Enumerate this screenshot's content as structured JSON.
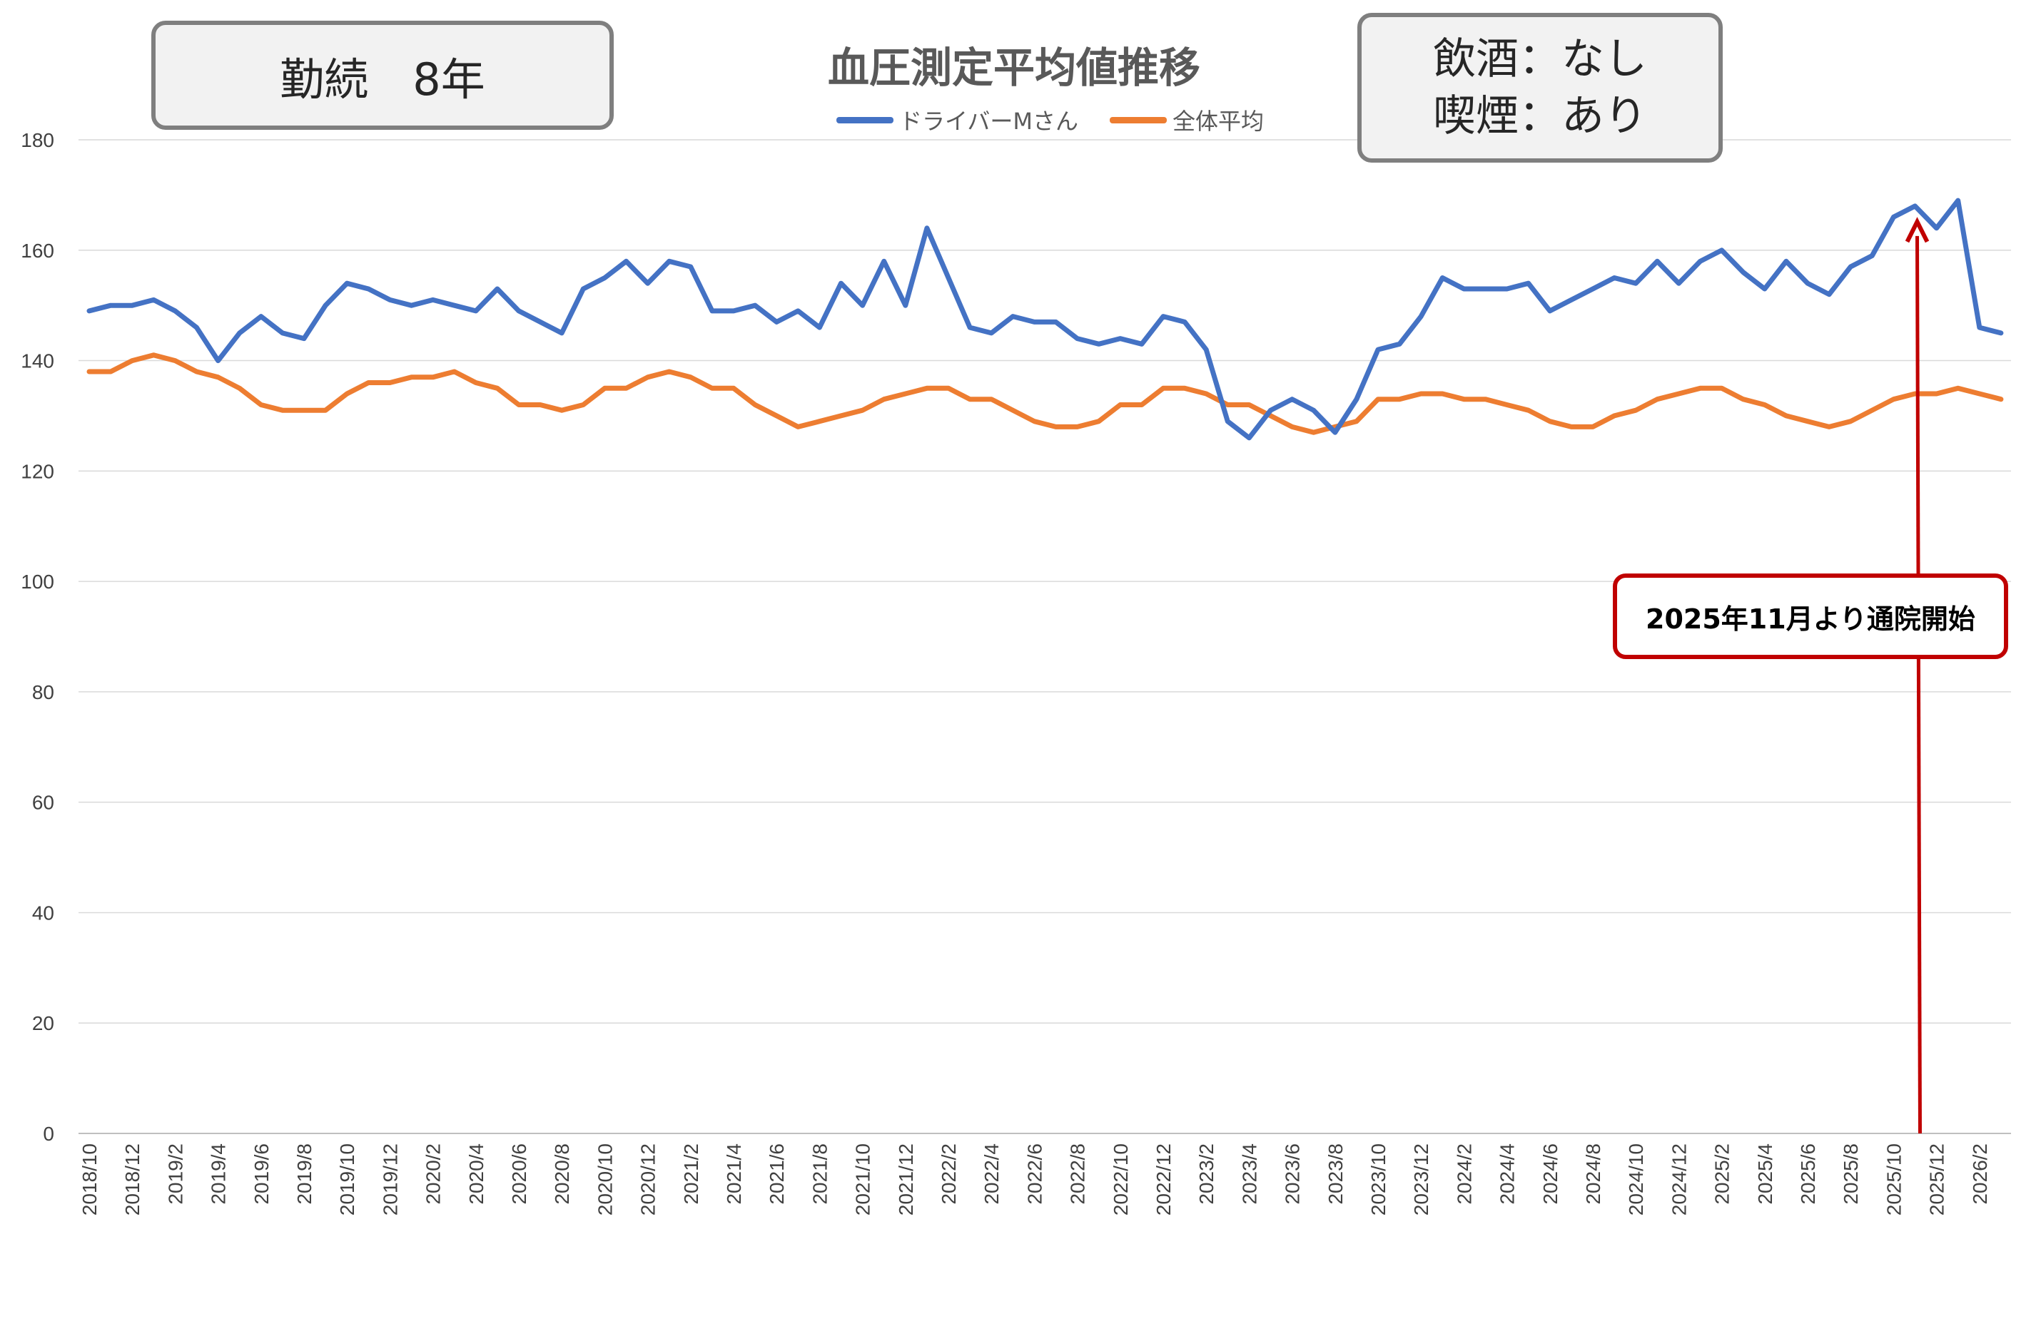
{
  "tenure_label": "勤続　8年",
  "habits": {
    "drinking": "飲酒：なし",
    "smoking": "喫煙：あり"
  },
  "colors": {
    "driver": "#4472c4",
    "average": "#ed7d31",
    "annotation": "#c00000",
    "grid": "#d9d9d9",
    "axis_text": "#404040"
  },
  "annotation": {
    "text": "2025年11月より通院開始",
    "target_period": "2025/11"
  },
  "chart_data": {
    "type": "line",
    "title": "血圧測定平均値推移",
    "ylim": [
      0,
      180
    ],
    "yticks": [
      0,
      20,
      40,
      60,
      80,
      100,
      120,
      140,
      160,
      180
    ],
    "grid": true,
    "legend_position": "top-center",
    "x": [
      "2018/10",
      "2018/11",
      "2018/12",
      "2019/1",
      "2019/2",
      "2019/3",
      "2019/4",
      "2019/5",
      "2019/6",
      "2019/7",
      "2019/8",
      "2019/9",
      "2019/10",
      "2019/11",
      "2019/12",
      "2020/1",
      "2020/2",
      "2020/3",
      "2020/4",
      "2020/5",
      "2020/6",
      "2020/7",
      "2020/8",
      "2020/9",
      "2020/10",
      "2020/11",
      "2020/12",
      "2021/1",
      "2021/2",
      "2021/3",
      "2021/4",
      "2021/5",
      "2021/6",
      "2021/7",
      "2021/8",
      "2021/9",
      "2021/10",
      "2021/11",
      "2021/12",
      "2022/1",
      "2022/2",
      "2022/3",
      "2022/4",
      "2022/5",
      "2022/6",
      "2022/7",
      "2022/8",
      "2022/9",
      "2022/10",
      "2022/11",
      "2022/12",
      "2023/1",
      "2023/2",
      "2023/3",
      "2023/4",
      "2023/5",
      "2023/6",
      "2023/7",
      "2023/8",
      "2023/9",
      "2023/10",
      "2023/11",
      "2023/12",
      "2024/1",
      "2024/2",
      "2024/3",
      "2024/4",
      "2024/5",
      "2024/6",
      "2024/7",
      "2024/8",
      "2024/9",
      "2024/10",
      "2024/11",
      "2024/12",
      "2025/1",
      "2025/2",
      "2025/3",
      "2025/4",
      "2025/5",
      "2025/6",
      "2025/7",
      "2025/8",
      "2025/9",
      "2025/10",
      "2025/11",
      "2025/12",
      "2026/1",
      "2026/2",
      "2026/3"
    ],
    "x_tick_labels": [
      "2018/10",
      "2018/12",
      "2019/2",
      "2019/4",
      "2019/6",
      "2019/8",
      "2019/10",
      "2019/12",
      "2020/2",
      "2020/4",
      "2020/6",
      "2020/8",
      "2020/10",
      "2020/12",
      "2021/2",
      "2021/4",
      "2021/6",
      "2021/8",
      "2021/10",
      "2021/12",
      "2022/2",
      "2022/4",
      "2022/6",
      "2022/8",
      "2022/10",
      "2022/12",
      "2023/2",
      "2023/4",
      "2023/6",
      "2023/8",
      "2023/10",
      "2023/12",
      "2024/2",
      "2024/4",
      "2024/6",
      "2024/8",
      "2024/10",
      "2024/12",
      "2025/2",
      "2025/4",
      "2025/6",
      "2025/8",
      "2025/10",
      "2025/12",
      "2026/2"
    ],
    "series": [
      {
        "name": "ドライバーMさん",
        "values": [
          149,
          150,
          150,
          151,
          149,
          146,
          140,
          145,
          148,
          145,
          144,
          150,
          154,
          153,
          151,
          150,
          151,
          150,
          149,
          153,
          149,
          147,
          145,
          153,
          155,
          158,
          154,
          158,
          157,
          149,
          149,
          150,
          147,
          149,
          146,
          154,
          150,
          158,
          150,
          164,
          155,
          146,
          145,
          148,
          147,
          147,
          144,
          143,
          144,
          143,
          148,
          147,
          142,
          129,
          126,
          131,
          133,
          131,
          127,
          133,
          142,
          143,
          148,
          155,
          153,
          153,
          153,
          154,
          149,
          151,
          153,
          155,
          154,
          158,
          154,
          158,
          160,
          156,
          153,
          158,
          154,
          152,
          157,
          159,
          166,
          168,
          164,
          169,
          146,
          145
        ]
      },
      {
        "name": "全体平均",
        "values": [
          138,
          138,
          140,
          141,
          140,
          138,
          137,
          135,
          132,
          131,
          131,
          131,
          134,
          136,
          136,
          137,
          137,
          138,
          136,
          135,
          132,
          132,
          131,
          132,
          135,
          135,
          137,
          138,
          137,
          135,
          135,
          132,
          130,
          128,
          129,
          130,
          131,
          133,
          134,
          135,
          135,
          133,
          133,
          131,
          129,
          128,
          128,
          129,
          132,
          132,
          135,
          135,
          134,
          132,
          132,
          130,
          128,
          127,
          128,
          129,
          133,
          133,
          134,
          134,
          133,
          133,
          132,
          131,
          129,
          128,
          128,
          130,
          131,
          133,
          134,
          135,
          135,
          133,
          132,
          130,
          129,
          128,
          129,
          131,
          133,
          134,
          134,
          135,
          134,
          133
        ]
      }
    ]
  }
}
